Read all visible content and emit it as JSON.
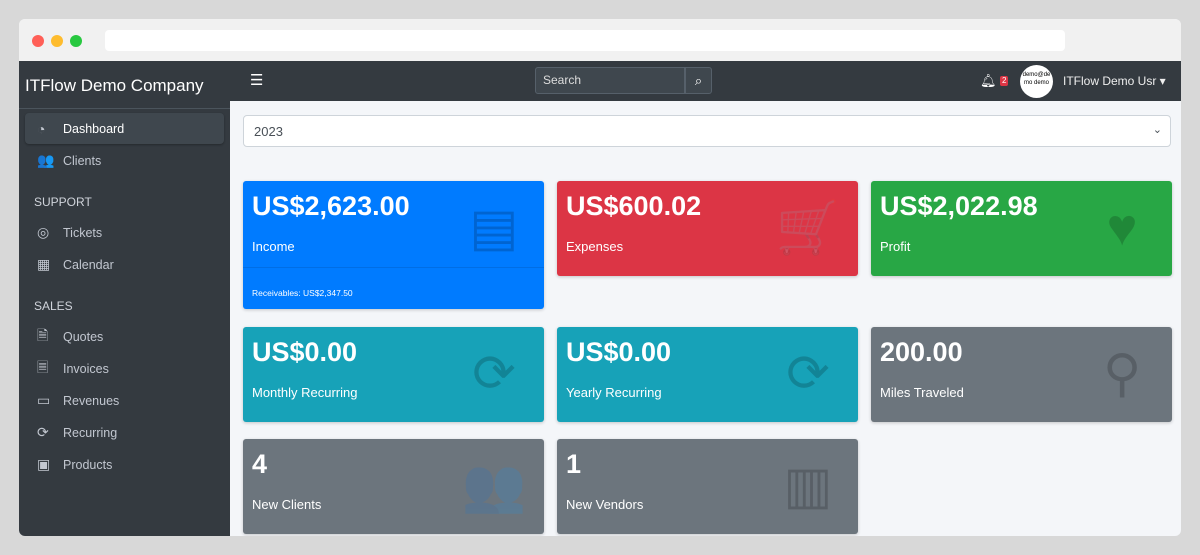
{
  "brand": "ITFlow Demo Company",
  "sidebar": {
    "items": [
      {
        "label": "Dashboard",
        "icon": "tachometer-icon",
        "glyph": "◔"
      },
      {
        "label": "Clients",
        "icon": "users-icon",
        "glyph": "👥"
      }
    ],
    "support_header": "SUPPORT",
    "support": [
      {
        "label": "Tickets",
        "icon": "life-ring-icon",
        "glyph": "◎"
      },
      {
        "label": "Calendar",
        "icon": "calendar-icon",
        "glyph": "▦"
      }
    ],
    "sales_header": "SALES",
    "sales": [
      {
        "label": "Quotes",
        "icon": "file-icon",
        "glyph": "🗎"
      },
      {
        "label": "Invoices",
        "icon": "file-invoice-icon",
        "glyph": "🗏"
      },
      {
        "label": "Revenues",
        "icon": "credit-card-icon",
        "glyph": "▭"
      },
      {
        "label": "Recurring",
        "icon": "sync-icon",
        "glyph": "⟳"
      },
      {
        "label": "Products",
        "icon": "box-icon",
        "glyph": "▣"
      }
    ]
  },
  "topbar": {
    "search_placeholder": "Search",
    "notifications": "2",
    "avatar_text": "demo@demo demo",
    "user": "ITFlow Demo Usr"
  },
  "year_select": "2023",
  "cards": [
    {
      "value": "US$2,623.00",
      "label": "Income",
      "icon": "credit-card-icon",
      "glyph": "▤",
      "color": "#007bff",
      "footer": "Receivables: US$2,347.50"
    },
    {
      "value": "US$600.02",
      "label": "Expenses",
      "icon": "shopping-cart-icon",
      "glyph": "🛒",
      "color": "#dc3545"
    },
    {
      "value": "US$2,022.98",
      "label": "Profit",
      "icon": "heart-icon",
      "glyph": "♥",
      "color": "#28a745"
    },
    {
      "value": "US$0.00",
      "label": "Monthly Recurring",
      "icon": "sync-icon",
      "glyph": "⟳",
      "color": "#17a2b8"
    },
    {
      "value": "US$0.00",
      "label": "Yearly Recurring",
      "icon": "sync-icon",
      "glyph": "⟳",
      "color": "#17a2b8"
    },
    {
      "value": "200.00",
      "label": "Miles Traveled",
      "icon": "route-icon",
      "glyph": "⚲",
      "color": "#6c757d"
    },
    {
      "value": "4",
      "label": "New Clients",
      "icon": "users-icon",
      "glyph": "👥",
      "color": "#6c757d"
    },
    {
      "value": "1",
      "label": "New Vendors",
      "icon": "building-icon",
      "glyph": "▥",
      "color": "#6c757d"
    }
  ]
}
